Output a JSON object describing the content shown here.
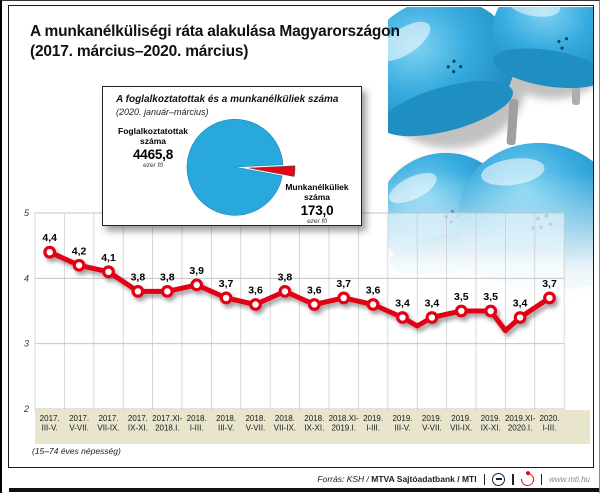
{
  "title": {
    "line1": "A munkanélküliségi ráta alakulása Magyarországon",
    "line2": "(2017. március–2020. március)"
  },
  "note": "(15–74 éves népesség)",
  "footer": {
    "source_italic": "Forrás: KSH /",
    "source_bold": "MTVA Sajtóadatbank / MTI",
    "mtva_logo": "mtva-logo",
    "mti_logo": "mti-logo",
    "website": "www.mti.hu"
  },
  "colors": {
    "red": "#e30613",
    "blue": "#29a8dc",
    "beige": "#e9e4cc",
    "grid": "#c4c4c4",
    "frame": "#1a1a1a"
  },
  "inset": {
    "title": "A foglalkoztatottak és a munkanélküliek száma",
    "subtitle": "(2020. január–március)",
    "employed_label_1": "Foglalkoztatottak",
    "employed_label_2": "száma",
    "employed_value": "4465,8",
    "employed_unit": "ezer fő",
    "unemployed_label_1": "Munkanélküliek",
    "unemployed_label_2": "száma",
    "unemployed_value": "173,0",
    "unemployed_unit": "ezer fő"
  },
  "chart_data": [
    {
      "type": "line",
      "title": "A munkanélküliségi ráta alakulása Magyarországon (2017. március–2020. március)",
      "categories": [
        "2017. III-V.",
        "2017. V-VII.",
        "2017. VII-IX.",
        "2017. IX-XI.",
        "2017.XI-2018.I.",
        "2018. I-III.",
        "2018. III-V.",
        "2018. V-VII.",
        "2018. VII-IX.",
        "2018. IX-XI.",
        "2018.XI-2019.I.",
        "2019. I-III.",
        "2019. III-V.",
        "2019. V-VII.",
        "2019. VII-IX.",
        "2019. IX-XI.",
        "2019.XI-2020.I.",
        "2020. I-III."
      ],
      "category_lines": [
        [
          "2017.",
          "III-V."
        ],
        [
          "2017.",
          "V-VII."
        ],
        [
          "2017.",
          "VII-IX."
        ],
        [
          "2017.",
          "IX-XI."
        ],
        [
          "2017.XI-",
          "2018.I."
        ],
        [
          "2018.",
          "I-III."
        ],
        [
          "2018.",
          "III-V."
        ],
        [
          "2018.",
          "V-VII."
        ],
        [
          "2018.",
          "VII-IX."
        ],
        [
          "2018.",
          "IX-XI."
        ],
        [
          "2018.XI-",
          "2019.I."
        ],
        [
          "2019.",
          "I-III."
        ],
        [
          "2019.",
          "III-V."
        ],
        [
          "2019.",
          "V-VII."
        ],
        [
          "2019.",
          "VII-IX."
        ],
        [
          "2019.",
          "IX-XI."
        ],
        [
          "2019.XI-",
          "2020.I."
        ],
        [
          "2020.",
          "I-III."
        ]
      ],
      "values": [
        4.4,
        4.2,
        4.1,
        3.8,
        3.8,
        3.9,
        3.7,
        3.6,
        3.8,
        3.6,
        3.7,
        3.6,
        3.4,
        3.4,
        3.5,
        3.5,
        3.4,
        3.7
      ],
      "unlabeled_dips": [
        {
          "between": [
            12,
            13
          ],
          "value": 3.27
        },
        {
          "between": [
            15,
            16
          ],
          "value": 3.2
        }
      ],
      "ylim": [
        2,
        5
      ],
      "yticks": [
        5,
        4,
        3,
        2
      ],
      "grid": true,
      "legend": "none",
      "line_color": "#e30613"
    },
    {
      "type": "pie",
      "title": "A foglalkoztatottak és a munkanélküliek száma (2020. január–március)",
      "unit": "ezer fő",
      "slices": [
        {
          "label": "Foglalkoztatottak száma",
          "value": 4465.8,
          "display": "4465,8",
          "color": "#29a8dc",
          "exploded": false
        },
        {
          "label": "Munkanélküliek száma",
          "value": 173.0,
          "display": "173,0",
          "color": "#e30613",
          "exploded": true
        }
      ]
    }
  ]
}
